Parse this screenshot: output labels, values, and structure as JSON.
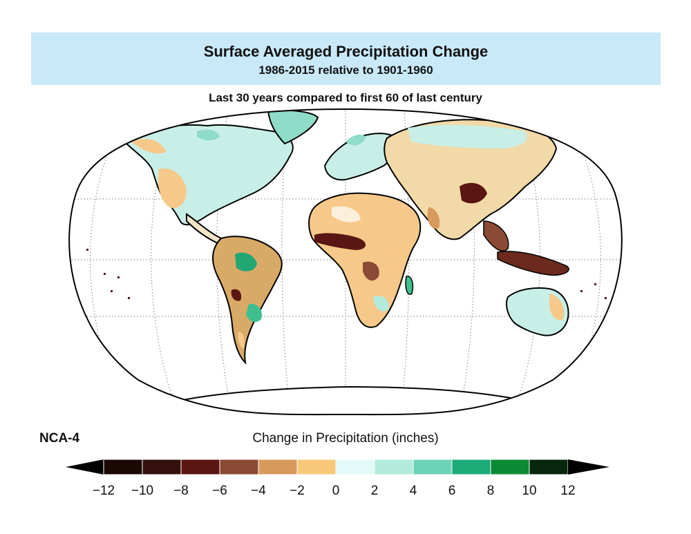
{
  "header": {
    "title": "Surface Averaged Precipitation Change",
    "subtitle": "1986-2015 relative to 1901-1960"
  },
  "caption": "Last 30 years compared to first 60 of last century",
  "map": {
    "projection": "Robinson",
    "graticule": "dotted",
    "ocean_color": "#ffffff",
    "coastline_color": "#000000",
    "region_shading": [
      {
        "region": "North America",
        "tone": "mostly wetter, drier west"
      },
      {
        "region": "South America",
        "tone": "mixed, wetter southeast"
      },
      {
        "region": "Africa",
        "tone": "drier, Sahel and west Africa strongly drier"
      },
      {
        "region": "Europe",
        "tone": "wetter north"
      },
      {
        "region": "Asia",
        "tone": "mixed, drier central and east"
      },
      {
        "region": "Australia",
        "tone": "wetter northwest, drier east"
      }
    ]
  },
  "source_label": "NCA-4",
  "legend": {
    "title": "Change in Precipitation (inches)",
    "bins": [
      {
        "from": -12,
        "to": -10,
        "color": "#1a0805"
      },
      {
        "from": -10,
        "to": -8,
        "color": "#33100c"
      },
      {
        "from": -8,
        "to": -6,
        "color": "#5a1612"
      },
      {
        "from": -6,
        "to": -4,
        "color": "#8b4a35"
      },
      {
        "from": -4,
        "to": -2,
        "color": "#d89a5c"
      },
      {
        "from": -2,
        "to": 0,
        "color": "#f8c87a"
      },
      {
        "from": 0,
        "to": 2,
        "color": "#e2faf8"
      },
      {
        "from": 2,
        "to": 4,
        "color": "#b2ebdc"
      },
      {
        "from": 4,
        "to": 6,
        "color": "#6cd2b8"
      },
      {
        "from": 6,
        "to": 8,
        "color": "#1daa79"
      },
      {
        "from": 8,
        "to": 10,
        "color": "#0a8a35"
      },
      {
        "from": 10,
        "to": 12,
        "color": "#06270d"
      }
    ],
    "tick_labels": [
      "−12",
      "−10",
      "−8",
      "−6",
      "−4",
      "−2",
      "0",
      "2",
      "4",
      "6",
      "8",
      "10",
      "12"
    ],
    "under_color": "#000000",
    "over_color": "#000000"
  }
}
